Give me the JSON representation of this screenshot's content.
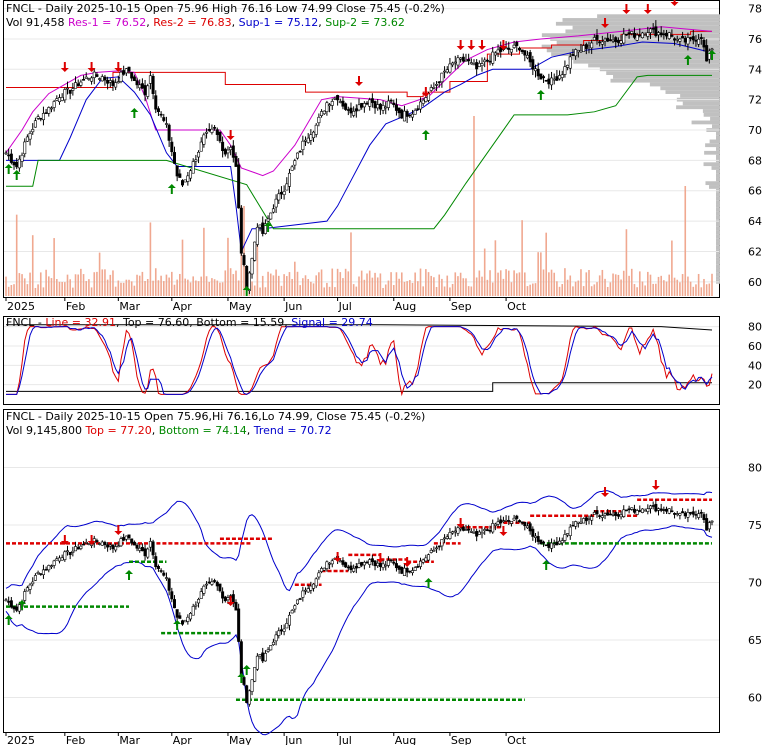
{
  "panel1": {
    "line1": {
      "prefix": "FNCL - Daily 2025-10-15 Open 75.96  High 76.16  Low 74.99  Close 75.45 (-0.2%)"
    },
    "line2": {
      "vol": "Vol 91,458",
      "res1": "Res-1 = 76.52",
      "res2": "Res-2 = 76.83",
      "sup1": "Sup-1 = 75.12",
      "sup2": "Sup-2 = 73.62"
    },
    "yticks": [
      "78",
      "76",
      "74",
      "72",
      "70",
      "68",
      "66",
      "64",
      "62",
      "60"
    ]
  },
  "panel2": {
    "header": {
      "name": "FNCL",
      "line": "Line = 32.91",
      "top": "Top = 76.60",
      "bottom": "Bottom = 15.59",
      "signal": "Signal = 29.74"
    },
    "yticks": [
      "80",
      "60",
      "40",
      "20"
    ]
  },
  "panel3": {
    "line1": "FNCL - Daily 2025-10-15 Open 75.96,Hi 76.16,Lo 74.99, Close 75.45 (-0.2%)",
    "line2": {
      "vol": "Vol 9,145,800",
      "top": "Top = 77.20",
      "bottom": "Bottom = 74.14",
      "trend": "Trend = 70.72"
    },
    "yticks": [
      "80",
      "75",
      "70",
      "65",
      "60"
    ]
  },
  "months": [
    "2025",
    "Feb",
    "Mar",
    "Apr",
    "May",
    "Jun",
    "Jul",
    "Aug",
    "Sep",
    "Oct"
  ],
  "colors": {
    "res1": "#cc00cc",
    "res2": "#dd0000",
    "sup1": "#0000cc",
    "sup2": "#008800",
    "volume": "#f0a890",
    "profile": "#c0c0c0",
    "up_arrow": "#008800",
    "down_arrow": "#dd0000",
    "kline": "#dd0000",
    "dline": "#0000cc"
  },
  "chart_data": [
    {
      "type": "candlestick",
      "title": "FNCL - Daily 2025-10-15",
      "ylim": [
        59,
        78.5
      ],
      "x_months": [
        "2025",
        "Feb",
        "Mar",
        "Apr",
        "May",
        "Jun",
        "Jul",
        "Aug",
        "Sep",
        "Oct"
      ],
      "close_path": [
        [
          0,
          68.5
        ],
        [
          4,
          67.6
        ],
        [
          8,
          69.5
        ],
        [
          12,
          70.8
        ],
        [
          16,
          71.4
        ],
        [
          20,
          72.3
        ],
        [
          24,
          72.6
        ],
        [
          28,
          73.2
        ],
        [
          32,
          73.6
        ],
        [
          36,
          73.5
        ],
        [
          40,
          73.0
        ],
        [
          44,
          73.8
        ],
        [
          46,
          73.9
        ],
        [
          48,
          73.2
        ],
        [
          52,
          72.5
        ],
        [
          54,
          73.6
        ],
        [
          56,
          71.6
        ],
        [
          60,
          70.2
        ],
        [
          64,
          67.0
        ],
        [
          66,
          66.4
        ],
        [
          70,
          67.8
        ],
        [
          74,
          69.5
        ],
        [
          78,
          70.0
        ],
        [
          82,
          68.5
        ],
        [
          84,
          69.0
        ],
        [
          86,
          67.5
        ],
        [
          88,
          62.0
        ],
        [
          90,
          59.8
        ],
        [
          92,
          61.5
        ],
        [
          94,
          63.8
        ],
        [
          96,
          63.2
        ],
        [
          100,
          65.0
        ],
        [
          104,
          66.2
        ],
        [
          108,
          67.9
        ],
        [
          112,
          69.5
        ],
        [
          116,
          70.3
        ],
        [
          120,
          71.8
        ],
        [
          124,
          72.2
        ],
        [
          128,
          71.2
        ],
        [
          132,
          71.6
        ],
        [
          136,
          72.0
        ],
        [
          140,
          71.4
        ],
        [
          144,
          71.8
        ],
        [
          148,
          71.0
        ],
        [
          152,
          71.2
        ],
        [
          156,
          72.0
        ],
        [
          160,
          72.8
        ],
        [
          164,
          73.8
        ],
        [
          168,
          74.5
        ],
        [
          172,
          74.6
        ],
        [
          176,
          74.0
        ],
        [
          180,
          74.6
        ],
        [
          184,
          75.2
        ],
        [
          188,
          75.3
        ],
        [
          192,
          75.5
        ],
        [
          196,
          74.4
        ],
        [
          200,
          73.5
        ],
        [
          204,
          73.2
        ],
        [
          208,
          73.8
        ],
        [
          212,
          75.0
        ],
        [
          216,
          75.4
        ],
        [
          220,
          75.9
        ],
        [
          224,
          76.0
        ],
        [
          228,
          75.9
        ],
        [
          232,
          76.3
        ],
        [
          236,
          76.3
        ],
        [
          240,
          76.6
        ],
        [
          244,
          76.4
        ],
        [
          248,
          76.3
        ],
        [
          252,
          75.8
        ],
        [
          256,
          75.9
        ],
        [
          260,
          76.2
        ],
        [
          262,
          74.5
        ],
        [
          264,
          75.45
        ]
      ],
      "res1": 76.52,
      "res2": 76.83,
      "sup1": 75.12,
      "sup2": 73.62
    },
    {
      "type": "line",
      "title": "FNCL",
      "ylim": [
        0,
        90
      ],
      "series": [
        {
          "name": "Line",
          "last": 32.91
        },
        {
          "name": "Signal",
          "last": 29.74
        }
      ],
      "top": 76.6,
      "bottom": 15.59
    },
    {
      "type": "candlestick",
      "title": "FNCL - Daily 2025-10-15",
      "ylim": [
        57,
        85
      ],
      "top": 77.2,
      "bottom": 74.14,
      "trend": 70.72
    }
  ]
}
